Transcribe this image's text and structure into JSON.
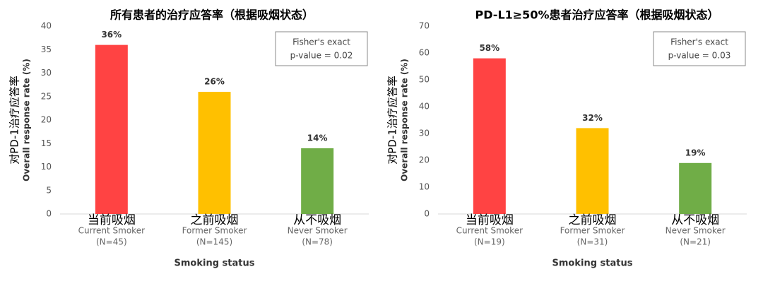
{
  "chart_data": [
    {
      "type": "bar",
      "title": "所有患者的治疗应答率（根据吸烟状态）",
      "y_label": [
        "对PD-1治疗应答率",
        "Overall response rate (%)"
      ],
      "x_label": "Smoking status",
      "categories": [
        "当前吸烟",
        "之前吸烟",
        "从不吸烟"
      ],
      "category_subtitles": [
        "Current Smoker",
        "Former Smoker",
        "Never Smoker"
      ],
      "category_counts": [
        "(N=45)",
        "(N=145)",
        "(N=78)"
      ],
      "values": [
        36,
        26,
        14
      ],
      "value_labels": [
        "36%",
        "26%",
        "14%"
      ],
      "colors": [
        "#ff4343",
        "#ffc000",
        "#70ad47"
      ],
      "annotation": [
        "Fisher's exact",
        "p-value = 0.02"
      ],
      "ylim": [
        0,
        40
      ],
      "yticks": [
        0,
        5,
        10,
        15,
        20,
        25,
        30,
        35,
        40
      ]
    },
    {
      "type": "bar",
      "title": "PD-L1≥50%患者治疗应答率（根据吸烟状态）",
      "y_label": [
        "对PD-1治疗应答率",
        "Overall response rate (%)"
      ],
      "x_label": "Smoking status",
      "categories": [
        "当前吸烟",
        "之前吸烟",
        "从不吸烟"
      ],
      "category_subtitles": [
        "Current Smoker",
        "Former Smoker",
        "Never Smoker"
      ],
      "category_counts": [
        "(N=19)",
        "(N=31)",
        "(N=21)"
      ],
      "values": [
        58,
        32,
        19
      ],
      "value_labels": [
        "58%",
        "32%",
        "19%"
      ],
      "colors": [
        "#ff4343",
        "#ffc000",
        "#70ad47"
      ],
      "annotation": [
        "Fisher's exact",
        "p-value = 0.03"
      ],
      "ylim": [
        0,
        70
      ],
      "yticks": [
        0,
        10,
        20,
        30,
        40,
        50,
        60,
        70
      ]
    }
  ]
}
